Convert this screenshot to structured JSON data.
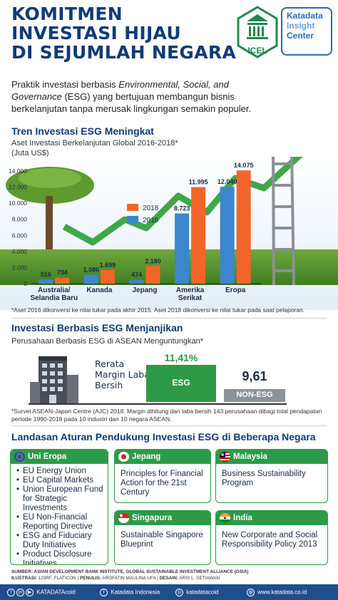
{
  "header": {
    "title_lines": [
      "KOMITMEN",
      "INVESTASI HIJAU",
      "DI SEJUMLAH NEGARA"
    ],
    "logo_icel": "ICEL",
    "logo_kic_lines": [
      "Katadata",
      "Insight",
      "Center"
    ]
  },
  "intro": {
    "part1": "Praktik investasi berbasis ",
    "italic1": "Environmental, Social, and Governance",
    "part2": " (ESG) yang bertujuan membangun bisnis berkelanjutan tanpa merusak lingkungan semakin populer."
  },
  "section1": {
    "title": "Tren Investasi ESG Meningkat",
    "subtitle_line1": "Aset Investasi Berkelanjutan Global 2016-2018*",
    "subtitle_line2": "(Juta US$)",
    "footnote": "*Aset 2016 dikonversi ke nilai tukar pada akhir 2015. Aset 2018 dikonversi ke nilai tukar pada saat pelaporan."
  },
  "chart_data": {
    "type": "bar",
    "title": "Aset Investasi Berkelanjutan Global 2016-2018*",
    "ylabel": "(Juta US$)",
    "categories": [
      "Australia/ Selandia Baru",
      "Kanada",
      "Jepang",
      "Amerika Serikat",
      "Eropa"
    ],
    "series": [
      {
        "name": "2016",
        "values": [
          516,
          1086,
          474,
          8723,
          12040
        ],
        "labels": [
          "516",
          "1.086",
          "474",
          "8.723",
          "12.040"
        ]
      },
      {
        "name": "2018",
        "values": [
          734,
          1699,
          2180,
          11995,
          14075
        ],
        "labels": [
          "734",
          "1.699",
          "2.180",
          "11.995",
          "14.075"
        ]
      }
    ],
    "ylim": [
      0,
      14000
    ],
    "yticks": [
      0,
      2000,
      4000,
      6000,
      8000,
      10000,
      12000,
      14000
    ],
    "ytick_labels": [
      "0",
      "2.000",
      "4.000",
      "6.000",
      "8.000",
      "10.000",
      "12.000",
      "14.000"
    ],
    "category_label_lines": [
      [
        "Australia/",
        "Selandia Baru"
      ],
      [
        "Kanada"
      ],
      [
        "Jepang"
      ],
      [
        "Amerika",
        "Serikat"
      ],
      [
        "Eropa"
      ]
    ],
    "legend": "right-center",
    "colors": {
      "2016": "#3b86cf",
      "2018": "#f2652a"
    }
  },
  "section2": {
    "title": "Investasi Berbasis ESG Menjanjikan",
    "subtitle": "Perusahaan Berbasis ESG di ASEAN Menguntungkan*",
    "margin_label": "Rerata Margin Laba Bersih",
    "esg_value": "11,41%",
    "esg_label": "ESG",
    "nonesg_value": "9,61",
    "nonesg_label": "NON-ESG",
    "footnote": "*Survei ASEAN-Japan Centre (AJC) 2018. Margin dihitung dari laba bersih 143 perusahaan dibagi total pendapatan periode 1990-2018 pada 10 industri dan 10 negara ASEAN."
  },
  "section3": {
    "title": "Landasan Aturan Pendukung Investasi ESG di Beberapa Negara",
    "cards": [
      {
        "name": "Uni Eropa",
        "items": [
          "EU Energy Union",
          "EU Capital Markets",
          "Union European Fund for Strategic Investments",
          "EU Non-Financial Reporting Directive",
          "ESG and Fiduciary Duty Initiatives",
          "Product Disclosure Initiatives"
        ]
      },
      {
        "name": "Jepang",
        "text": "Principles for Financial Action for the 21st Century"
      },
      {
        "name": "Malaysia",
        "text": "Business Sustainability Program"
      },
      {
        "name": "Singapura",
        "text": "Sustainable Singapore Blueprint"
      },
      {
        "name": "India",
        "text": "New Corporate and Social Responsibility Policy 2013"
      }
    ]
  },
  "footer": {
    "source_label": "SUMBER:",
    "source": "ASIAN DEVELOPMENT BANK INSTITUTE, GLOBAL SUSTAINABLE INVESTMENT ALLIANCE (GSIA)",
    "illustrasi_label": "ILUSTRASI:",
    "illustrasi": "123RF, FLATICON",
    "penulis_label": "PENULIS:",
    "penulis": "AROFATIN MAULINA UFA",
    "desain_label": "DESAIN:",
    "desain": "ARIS L. SETIAWAN",
    "social_handle": "KATADATAcoid",
    "facebook": "Katadata Indonesia",
    "instagram": "katadatacoid",
    "website": "www.katadata.co.id"
  },
  "colors": {
    "navy": "#0f3b78",
    "green": "#2d9a47",
    "blue_2016": "#3b86cf",
    "orange_2018": "#f2652a",
    "grey_nonesg": "#8c929a"
  }
}
